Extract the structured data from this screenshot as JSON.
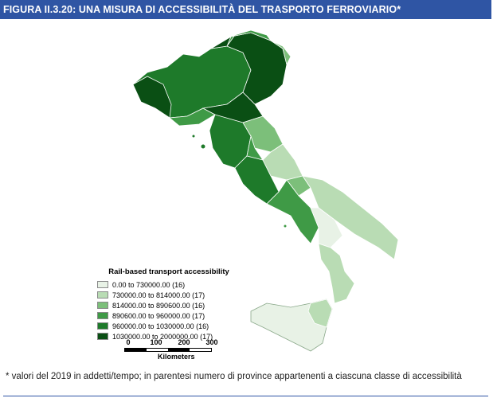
{
  "header": {
    "title": "FIGURA II.3.20: UNA MISURA DI ACCESSIBILITÀ DEL TRASPORTO FERROVIARIO*"
  },
  "legend": {
    "title": "Rail-based transport accessibility",
    "classes": [
      {
        "label": "0.00 to 730000.00 (16)",
        "color": "#e8f2e6"
      },
      {
        "label": "730000.00 to 814000.00 (17)",
        "color": "#b9dcb4"
      },
      {
        "label": "814000.00 to 890600.00 (16)",
        "color": "#7cbf7a"
      },
      {
        "label": "890600.00 to 960000.00 (17)",
        "color": "#3f9a46"
      },
      {
        "label": "960000.00 to 1030000.00 (16)",
        "color": "#1e7a2a"
      },
      {
        "label": "1030000.00 to 2000000.00 (17)",
        "color": "#0a4f14"
      }
    ]
  },
  "scale": {
    "ticks": [
      "0",
      "100",
      "200",
      "300"
    ],
    "unit": "Kilometers"
  },
  "footnote": "* valori del 2019 in addetti/tempo; in parentesi numero di province appartenenti a ciascuna classe di accessibilità"
}
